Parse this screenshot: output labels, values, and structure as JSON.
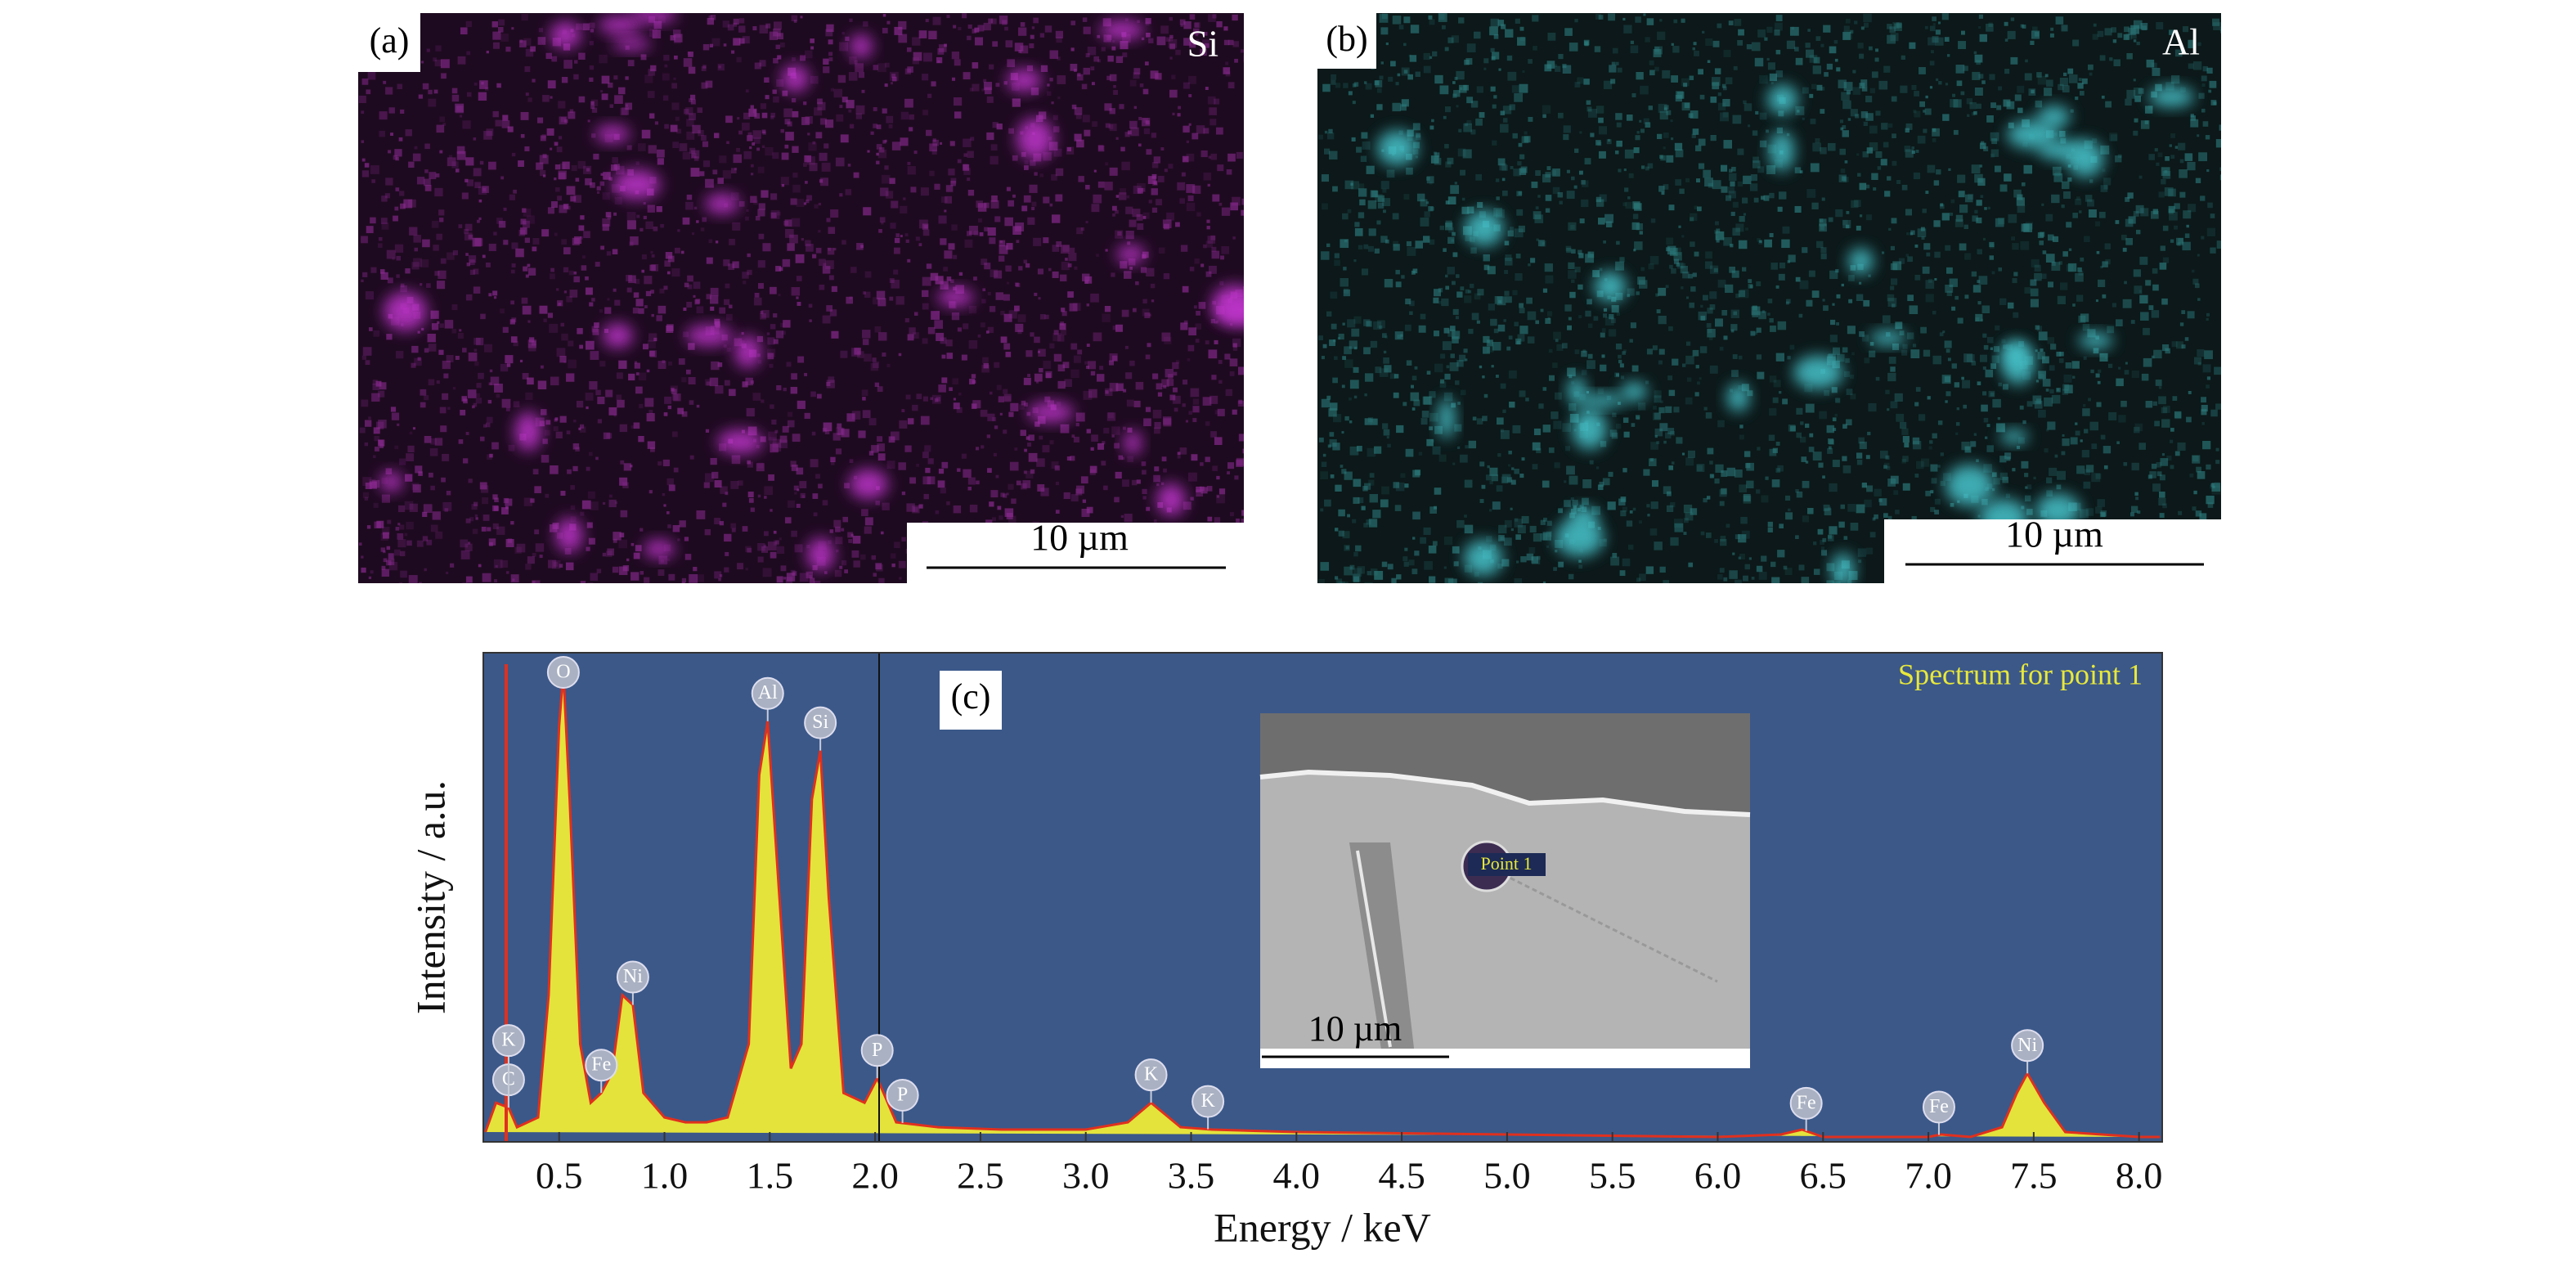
{
  "panels": [
    {
      "label": "(a)",
      "element": "Si",
      "scale_bar": "10 µm"
    },
    {
      "label": "(b)",
      "element": "Al",
      "scale_bar": "10 µm"
    }
  ],
  "chart_data": {
    "type": "line",
    "panel_label": "(c)",
    "title": "Spectrum for point 1",
    "x_label": "Energy / keV",
    "y_label": "Intensity / a.u.",
    "x": [
      0.15,
      0.2,
      0.26,
      0.3,
      0.4,
      0.45,
      0.5,
      0.52,
      0.55,
      0.6,
      0.65,
      0.7,
      0.75,
      0.8,
      0.85,
      0.9,
      1.0,
      1.1,
      1.2,
      1.3,
      1.4,
      1.45,
      1.49,
      1.53,
      1.6,
      1.65,
      1.7,
      1.74,
      1.78,
      1.85,
      1.95,
      2.01,
      2.1,
      2.3,
      2.6,
      3.0,
      3.2,
      3.31,
      3.45,
      3.6,
      4.0,
      5.0,
      6.0,
      6.3,
      6.4,
      6.5,
      7.0,
      7.06,
      7.2,
      7.35,
      7.42,
      7.47,
      7.55,
      7.65,
      8.0,
      8.1
    ],
    "values": [
      2,
      8,
      7,
      3,
      5,
      30,
      85,
      96,
      70,
      20,
      8,
      10,
      14,
      30,
      28,
      10,
      5,
      4,
      4,
      5,
      20,
      75,
      86,
      60,
      15,
      20,
      70,
      80,
      50,
      10,
      8,
      13,
      4,
      3,
      2.5,
      2.5,
      4,
      8,
      3,
      2.5,
      2,
      1.5,
      1,
      1.5,
      2.5,
      1,
      1,
      1.5,
      1,
      3,
      10,
      14,
      8,
      2,
      1,
      1
    ],
    "color": "#e3e33c",
    "line_color": "#e0301e",
    "background": "#3b5889",
    "xlim": [
      0.14,
      8.11
    ],
    "ylim": [
      0,
      100
    ],
    "xticks": [
      0.5,
      {
        "value": 1,
        "label": "1.0"
      },
      1.5,
      {
        "value": 2,
        "label": "2.0"
      },
      2.5,
      {
        "value": 3,
        "label": "3.0"
      },
      3.5,
      {
        "value": 4,
        "label": "4.0"
      },
      4.5,
      {
        "value": 5,
        "label": "5.0"
      },
      5.5,
      {
        "value": 6,
        "label": "6.0"
      },
      6.5,
      {
        "value": 7,
        "label": "7.0"
      },
      7.5,
      {
        "value": 8,
        "label": "8.0"
      }
    ],
    "peaks": [
      {
        "label": "C",
        "x": 0.26
      },
      {
        "label": "K",
        "x": 0.26
      },
      {
        "label": "O",
        "x": 0.52
      },
      {
        "label": "Fe",
        "x": 0.7
      },
      {
        "label": "Ni",
        "x": 0.85
      },
      {
        "label": "Al",
        "x": 1.49
      },
      {
        "label": "Si",
        "x": 1.74
      },
      {
        "label": "P",
        "x": 2.01
      },
      {
        "label": "P",
        "x": 2.13
      },
      {
        "label": "K",
        "x": 3.31
      },
      {
        "label": "K",
        "x": 3.58
      },
      {
        "label": "Fe",
        "x": 6.42
      },
      {
        "label": "Fe",
        "x": 7.05
      },
      {
        "label": "Ni",
        "x": 7.47
      }
    ],
    "inset": {
      "point_label": "Point 1",
      "scale_bar": "10 µm"
    }
  }
}
